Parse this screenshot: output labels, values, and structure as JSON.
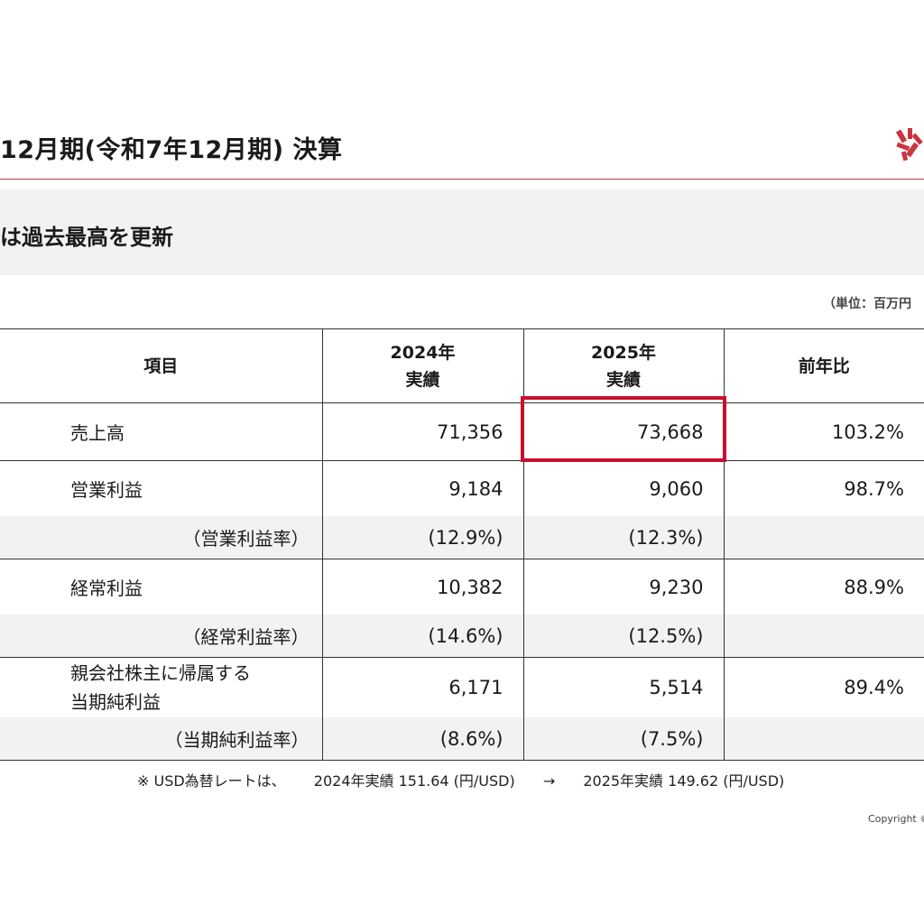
{
  "header": {
    "title": "12月期(令和7年12月期) 決算",
    "logo_icon": "company-logo-icon",
    "accent_color": "#c9343f"
  },
  "banner": {
    "text": "は過去最高を更新"
  },
  "unit_note": "（単位：百万円",
  "table": {
    "headers": {
      "item": "項目",
      "fy2024_year": "2024年",
      "fy2024_label": "実績",
      "fy2025_year": "2025年",
      "fy2025_label": "実績",
      "yoy": "前年比"
    },
    "rows": [
      {
        "label": "売上高",
        "fy2024": "71,356",
        "fy2025": "73,668",
        "yoy": "103.2%"
      },
      {
        "label": "営業利益",
        "fy2024": "9,184",
        "fy2025": "9,060",
        "yoy": "98.7%"
      },
      {
        "label": "（営業利益率）",
        "fy2024": "(12.9%)",
        "fy2025": "(12.3%)",
        "yoy": ""
      },
      {
        "label": "経常利益",
        "fy2024": "10,382",
        "fy2025": "9,230",
        "yoy": "88.9%"
      },
      {
        "label": "（経常利益率）",
        "fy2024": "(14.6%)",
        "fy2025": "(12.5%)",
        "yoy": ""
      },
      {
        "label_line1": "親会社株主に帰属する",
        "label_line2": "当期純利益",
        "fy2024": "6,171",
        "fy2025": "5,514",
        "yoy": "89.4%"
      },
      {
        "label": "（当期純利益率）",
        "fy2024": "(8.6%)",
        "fy2025": "(7.5%)",
        "yoy": ""
      }
    ],
    "highlight_color": "#c8102e"
  },
  "footnote": {
    "prefix": "※ USD為替レートは、",
    "fy2024": "2024年実績 151.64 (円/USD)",
    "arrow": "→",
    "fy2025": "2025年実績 149.62 (円/USD)"
  },
  "copyright": "Copyright ©"
}
